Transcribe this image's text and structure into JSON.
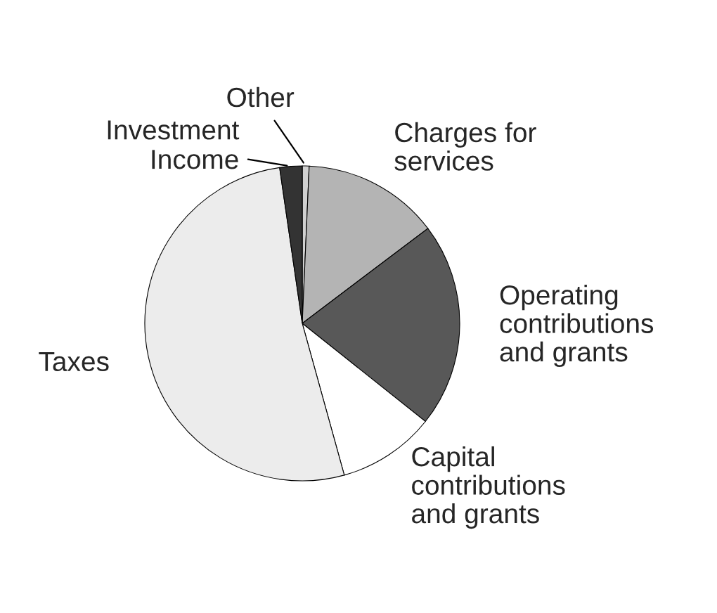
{
  "chart_data": {
    "type": "pie",
    "categories": [
      "Other",
      "Charges for\nservices",
      "Operating\ncontributions\nand grants",
      "Capital\ncontributions\nand grants",
      "Taxes",
      "Investment\nIncome"
    ],
    "values": [
      0.7,
      14,
      21,
      10,
      52,
      2.3
    ],
    "colors": [
      "#d0d0d0",
      "#b4b4b4",
      "#585858",
      "#ffffff",
      "#ececec",
      "#333333"
    ]
  }
}
